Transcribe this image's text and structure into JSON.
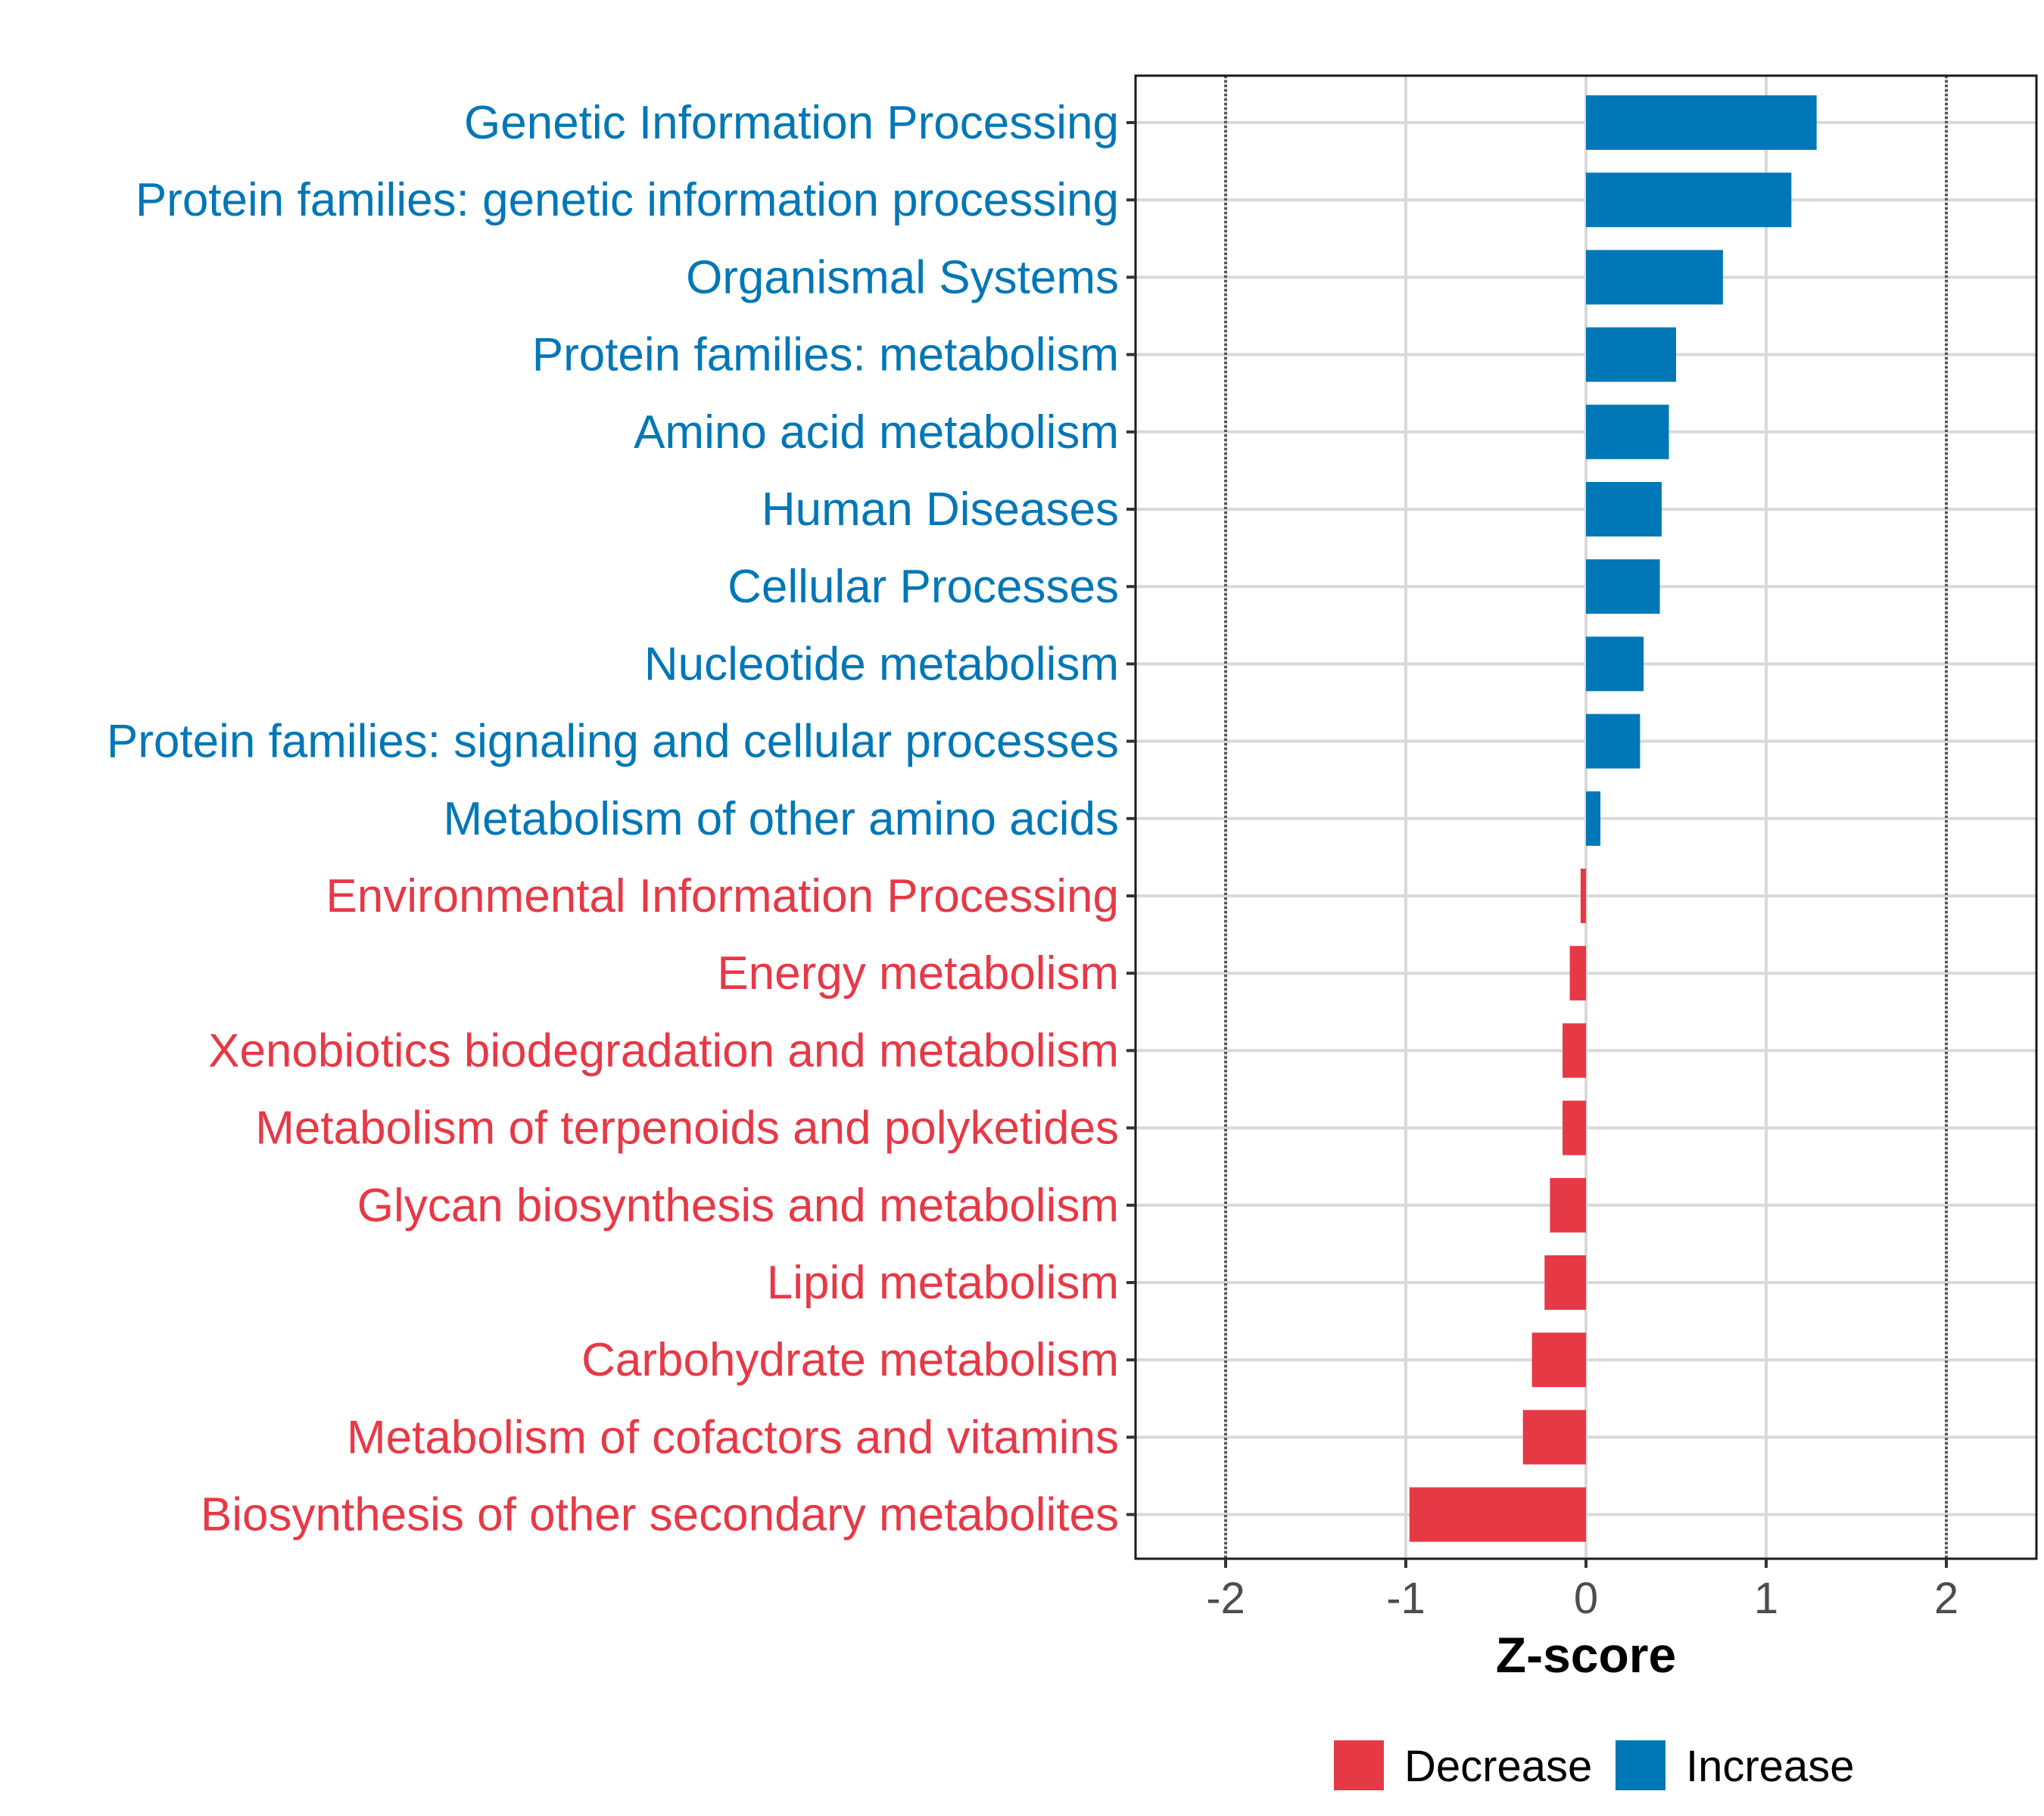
{
  "chart_data": {
    "type": "bar",
    "orientation": "horizontal",
    "title": "",
    "xlabel": "Z-score",
    "ylabel": "",
    "xlim": [
      -2.5,
      2.5
    ],
    "x_ticks": [
      -2,
      -1,
      0,
      1,
      2
    ],
    "x_tick_labels": [
      "-2",
      "-1",
      "0",
      "1",
      "2"
    ],
    "reference_lines": [
      -2,
      2
    ],
    "grid": true,
    "categories": [
      "Genetic Information Processing",
      "Protein families: genetic information processing",
      "Organismal Systems",
      "Protein families: metabolism",
      "Amino acid metabolism",
      "Human Diseases",
      "Cellular Processes",
      "Nucleotide metabolism",
      "Protein families: signaling and cellular processes",
      "Metabolism of other amino acids",
      "Environmental Information Processing",
      "Energy metabolism",
      "Xenobiotics biodegradation and metabolism",
      "Metabolism of terpenoids and polyketides",
      "Glycan biosynthesis and metabolism",
      "Lipid metabolism",
      "Carbohydrate metabolism",
      "Metabolism of cofactors and vitamins",
      "Biosynthesis of other secondary metabolites"
    ],
    "values": [
      1.28,
      1.14,
      0.76,
      0.5,
      0.46,
      0.42,
      0.41,
      0.32,
      0.3,
      0.08,
      -0.03,
      -0.09,
      -0.13,
      -0.13,
      -0.2,
      -0.23,
      -0.3,
      -0.35,
      -0.98
    ],
    "legend": {
      "position": "bottom",
      "entries": [
        {
          "label": "Decrease",
          "color": "#E63946"
        },
        {
          "label": "Increase",
          "color": "#0077B6"
        }
      ]
    },
    "colors": {
      "increase": "#0077B6",
      "decrease": "#E63946",
      "grid": "#d9d9d9",
      "reference": "#555555"
    }
  }
}
